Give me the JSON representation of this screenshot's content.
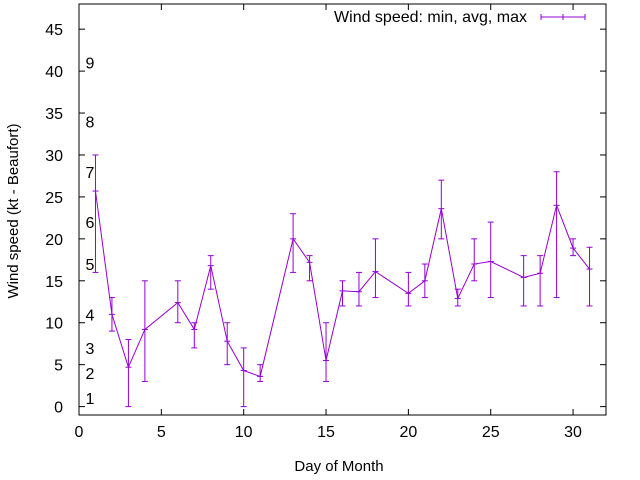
{
  "chart_data": {
    "type": "line",
    "title": "",
    "xlabel": "Day of Month",
    "ylabel": "Wind speed (kt - Beaufort)",
    "xlim": [
      0,
      32
    ],
    "ylim": [
      -1,
      48
    ],
    "x_ticks": [
      "0",
      "5",
      "10",
      "15",
      "20",
      "25",
      "30"
    ],
    "y_ticks": [
      "0",
      "5",
      "10",
      "15",
      "20",
      "25",
      "30",
      "35",
      "40",
      "45"
    ],
    "beaufort_scale": [
      {
        "label": "1",
        "kt": 1
      },
      {
        "label": "2",
        "kt": 4
      },
      {
        "label": "3",
        "kt": 7
      },
      {
        "label": "4",
        "kt": 11
      },
      {
        "label": "5",
        "kt": 17
      },
      {
        "label": "6",
        "kt": 22
      },
      {
        "label": "7",
        "kt": 28
      },
      {
        "label": "8",
        "kt": 34
      },
      {
        "label": "9",
        "kt": 41
      }
    ],
    "grid": false,
    "legend_position": "top-right",
    "series": [
      {
        "name": "Wind speed: min, avg, max",
        "color": "#9400d3",
        "points": [
          {
            "x": 1,
            "min": 16,
            "avg": 25.7,
            "max": 30
          },
          {
            "x": 2,
            "min": 9,
            "avg": 11,
            "max": 13
          },
          {
            "x": 3,
            "min": 0,
            "avg": 4.7,
            "max": 8
          },
          {
            "x": 4,
            "min": 3,
            "avg": 9.2,
            "max": 15
          },
          {
            "x": 6,
            "min": 10,
            "avg": 12.4,
            "max": 15
          },
          {
            "x": 7,
            "min": 7,
            "avg": 9.2,
            "max": 10
          },
          {
            "x": 8,
            "min": 14,
            "avg": 16.8,
            "max": 18
          },
          {
            "x": 9,
            "min": 5,
            "avg": 7.8,
            "max": 10
          },
          {
            "x": 10,
            "min": 0,
            "avg": 4.3,
            "max": 7
          },
          {
            "x": 11,
            "min": 3,
            "avg": 3.6,
            "max": 5
          },
          {
            "x": 13,
            "min": 16,
            "avg": 20,
            "max": 23
          },
          {
            "x": 14,
            "min": 15,
            "avg": 17.2,
            "max": 18
          },
          {
            "x": 15,
            "min": 3,
            "avg": 5.5,
            "max": 10
          },
          {
            "x": 16,
            "min": 12,
            "avg": 13.8,
            "max": 15
          },
          {
            "x": 17,
            "min": 12,
            "avg": 13.7,
            "max": 16
          },
          {
            "x": 18,
            "min": 13,
            "avg": 16.1,
            "max": 20
          },
          {
            "x": 20,
            "min": 12,
            "avg": 13.5,
            "max": 16
          },
          {
            "x": 21,
            "min": 13,
            "avg": 15,
            "max": 17
          },
          {
            "x": 22,
            "min": 20,
            "avg": 23.6,
            "max": 27
          },
          {
            "x": 23,
            "min": 12,
            "avg": 12.9,
            "max": 14
          },
          {
            "x": 24,
            "min": 15,
            "avg": 17,
            "max": 20
          },
          {
            "x": 25,
            "min": 13,
            "avg": 17.3,
            "max": 22
          },
          {
            "x": 27,
            "min": 12,
            "avg": 15.4,
            "max": 18
          },
          {
            "x": 28,
            "min": 12,
            "avg": 15.9,
            "max": 18
          },
          {
            "x": 29,
            "min": 13,
            "avg": 24,
            "max": 28
          },
          {
            "x": 30,
            "min": 18,
            "avg": 18.9,
            "max": 20
          },
          {
            "x": 31,
            "min": 12,
            "avg": 16.4,
            "max": 19
          }
        ]
      }
    ]
  }
}
